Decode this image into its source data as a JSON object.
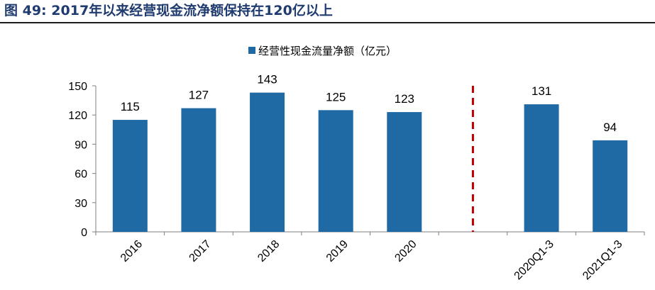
{
  "figure": {
    "number_label": "图 49:",
    "title": "2017年以来经营现金流净额保持在120亿以上"
  },
  "chart_data": {
    "type": "bar",
    "categories": [
      "2016",
      "2017",
      "2018",
      "2019",
      "2020",
      "",
      "2020Q1-3",
      "2021Q1-3"
    ],
    "series": [
      {
        "name": "经营性现金流量净额（亿元）",
        "values": [
          115,
          127,
          143,
          125,
          123,
          null,
          131,
          94
        ]
      }
    ],
    "ylim": [
      0,
      150
    ],
    "yticks": [
      0,
      30,
      60,
      90,
      120,
      150
    ],
    "data_labels": true,
    "legend_position": "top-center",
    "grid": false,
    "separator": {
      "type": "dashed-vertical",
      "after_category_index": 5
    },
    "colors": {
      "bar": "#1f6aa5",
      "separator": "#c00000",
      "axis": "#7f7f7f"
    }
  }
}
